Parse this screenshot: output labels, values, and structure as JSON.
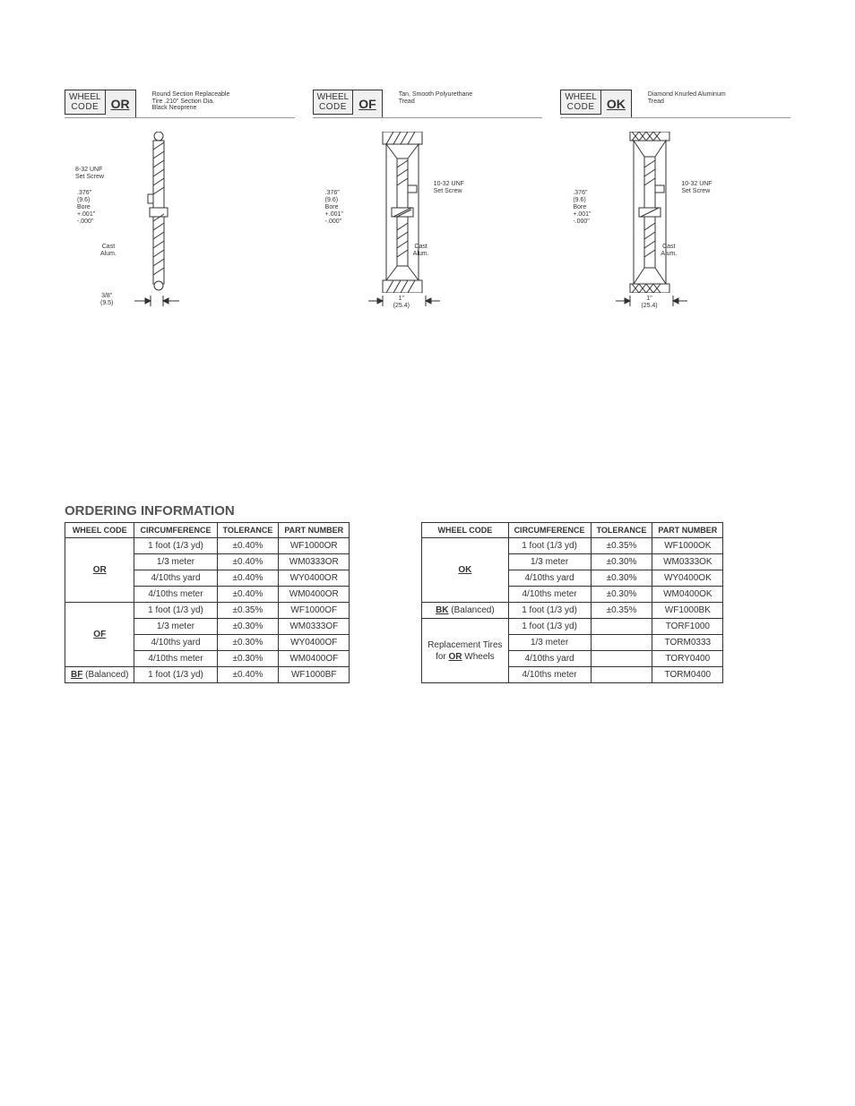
{
  "diagrams": [
    {
      "wheel_label": "WHEEL",
      "code_label": "CODE",
      "code": "OR",
      "desc": "Round Section Replaceable\nTire .210\" Section Dia.\nBlack Neoprene",
      "set_screw": "8-32 UNF\nSet Screw",
      "bore": ".376\"\n(9.6)\nBore\n+.001\"\n-.000\"",
      "cast": "Cast\nAlum.",
      "width": "3/8\"\n(9.5)"
    },
    {
      "wheel_label": "WHEEL",
      "code_label": "CODE",
      "code": "OF",
      "desc": "Tan, Smooth Polyurethane\nTread",
      "set_screw": "10-32 UNF\nSet Screw",
      "bore": ".376\"\n(9.6)\nBore\n+.001\"\n-.000\"",
      "cast": "Cast\nAlum.",
      "width": "1\"\n(25.4)"
    },
    {
      "wheel_label": "WHEEL",
      "code_label": "CODE",
      "code": "OK",
      "desc": "Diamond Knurled Aluminum\nTread",
      "set_screw": "10-32 UNF\nSet Screw",
      "bore": ".376\"\n(9.6)\nBore\n+.001\"\n-.000\"",
      "cast": "Cast\nAlum.",
      "width": "1\"\n(25.4)"
    }
  ],
  "ordering_title": "ORDERING INFORMATION",
  "table_headers": {
    "wheel_code": "WHEEL CODE",
    "circumference": "CIRCUMFERENCE",
    "tolerance": "TOLERANCE",
    "part_number": "PART NUMBER"
  },
  "left_table": [
    {
      "code": "OR",
      "code_extra": "",
      "rows": [
        {
          "circ": "1 foot (1/3 yd)",
          "tol": "±0.40%",
          "pn": "WF1000OR"
        },
        {
          "circ": "1/3 meter",
          "tol": "±0.40%",
          "pn": "WM0333OR"
        },
        {
          "circ": "4/10ths yard",
          "tol": "±0.40%",
          "pn": "WY0400OR"
        },
        {
          "circ": "4/10ths meter",
          "tol": "±0.40%",
          "pn": "WM0400OR"
        }
      ]
    },
    {
      "code": "OF",
      "code_extra": "",
      "rows": [
        {
          "circ": "1 foot (1/3 yd)",
          "tol": "±0.35%",
          "pn": "WF1000OF"
        },
        {
          "circ": "1/3 meter",
          "tol": "±0.30%",
          "pn": "WM0333OF"
        },
        {
          "circ": "4/10ths yard",
          "tol": "±0.30%",
          "pn": "WY0400OF"
        },
        {
          "circ": "4/10ths meter",
          "tol": "±0.30%",
          "pn": "WM0400OF"
        }
      ]
    },
    {
      "code": "BF",
      "code_extra": " (Balanced)",
      "rows": [
        {
          "circ": "1 foot (1/3 yd)",
          "tol": "±0.40%",
          "pn": "WF1000BF"
        }
      ]
    }
  ],
  "right_table": [
    {
      "code": "OK",
      "code_extra": "",
      "plain": false,
      "rows": [
        {
          "circ": "1 foot (1/3 yd)",
          "tol": "±0.35%",
          "pn": "WF1000OK"
        },
        {
          "circ": "1/3 meter",
          "tol": "±0.30%",
          "pn": "WM0333OK"
        },
        {
          "circ": "4/10ths yard",
          "tol": "±0.30%",
          "pn": "WY0400OK"
        },
        {
          "circ": "4/10ths meter",
          "tol": "±0.30%",
          "pn": "WM0400OK"
        }
      ]
    },
    {
      "code": "BK",
      "code_extra": " (Balanced)",
      "plain": false,
      "rows": [
        {
          "circ": "1 foot (1/3 yd)",
          "tol": "±0.35%",
          "pn": "WF1000BK"
        }
      ]
    },
    {
      "code_html": "Replacement Tires<br>for <span class=\"u\">OR</span> Wheels",
      "plain": true,
      "rows": [
        {
          "circ": "1 foot (1/3 yd)",
          "tol": "",
          "pn": "TORF1000"
        },
        {
          "circ": "1/3 meter",
          "tol": "",
          "pn": "TORM0333"
        },
        {
          "circ": "4/10ths yard",
          "tol": "",
          "pn": "TORY0400"
        },
        {
          "circ": "4/10ths meter",
          "tol": "",
          "pn": "TORM0400"
        }
      ]
    }
  ],
  "colors": {
    "text": "#333333",
    "border": "#333333",
    "header_bg": "#f0f0f0",
    "background": "#ffffff"
  }
}
